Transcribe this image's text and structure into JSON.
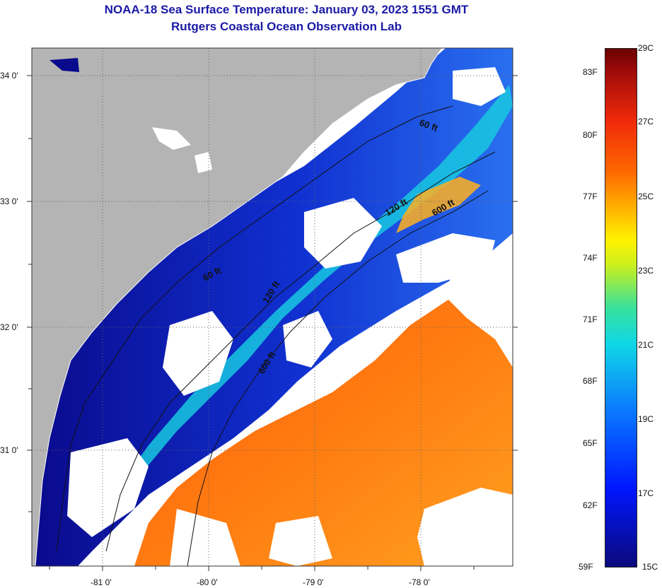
{
  "title_line1": "NOAA-18 Sea Surface Temperature:  January 03, 2023 1551 GMT",
  "title_line2": "Rutgers Coastal Ocean Observation Lab",
  "lat_labels": [
    "34 0'",
    "33 0'",
    "32 0'",
    "31 0'"
  ],
  "lon_labels": [
    "-81 0'",
    "-80 0'",
    "-79 0'",
    "-78 0'"
  ],
  "depth_labels": [
    "60 ft",
    "60 ft",
    "120 ft",
    "120 ft",
    "600 ft",
    "600 ft"
  ],
  "colorbar": {
    "fahrenheit": [
      "83F",
      "80F",
      "77F",
      "74F",
      "71F",
      "68F",
      "65F",
      "62F",
      "59F"
    ],
    "celsius": [
      "29C",
      "27C",
      "25C",
      "23C",
      "21C",
      "19C",
      "17C",
      "15C"
    ]
  },
  "colors": {
    "land": "#b4b4b4",
    "cloud": "#ffffff",
    "cold_water": "#0a0a8c",
    "warm_water": "#ff6a10",
    "title": "#1a1aa6"
  }
}
